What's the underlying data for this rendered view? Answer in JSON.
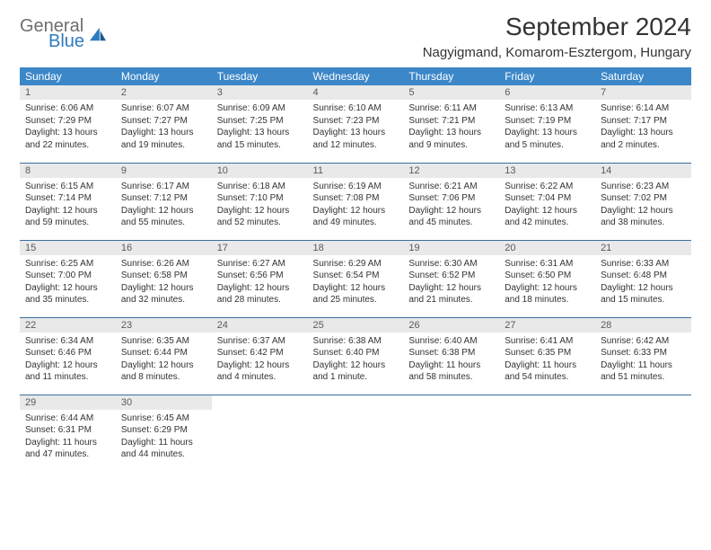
{
  "logo": {
    "word1": "General",
    "word2": "Blue"
  },
  "title": "September 2024",
  "location": "Nagyigmand, Komarom-Esztergom, Hungary",
  "colors": {
    "header_bg": "#3b87c8",
    "header_fg": "#ffffff",
    "daynum_bg": "#e9e9e9",
    "daynum_fg": "#5a5a5a",
    "row_border": "#3b6fa0",
    "logo_gray": "#6e6e6e",
    "logo_blue": "#2f7bbf",
    "body_text": "#333333"
  },
  "weekdays": [
    "Sunday",
    "Monday",
    "Tuesday",
    "Wednesday",
    "Thursday",
    "Friday",
    "Saturday"
  ],
  "weeks": [
    [
      {
        "n": "1",
        "sr": "6:06 AM",
        "ss": "7:29 PM",
        "dl": "13 hours and 22 minutes."
      },
      {
        "n": "2",
        "sr": "6:07 AM",
        "ss": "7:27 PM",
        "dl": "13 hours and 19 minutes."
      },
      {
        "n": "3",
        "sr": "6:09 AM",
        "ss": "7:25 PM",
        "dl": "13 hours and 15 minutes."
      },
      {
        "n": "4",
        "sr": "6:10 AM",
        "ss": "7:23 PM",
        "dl": "13 hours and 12 minutes."
      },
      {
        "n": "5",
        "sr": "6:11 AM",
        "ss": "7:21 PM",
        "dl": "13 hours and 9 minutes."
      },
      {
        "n": "6",
        "sr": "6:13 AM",
        "ss": "7:19 PM",
        "dl": "13 hours and 5 minutes."
      },
      {
        "n": "7",
        "sr": "6:14 AM",
        "ss": "7:17 PM",
        "dl": "13 hours and 2 minutes."
      }
    ],
    [
      {
        "n": "8",
        "sr": "6:15 AM",
        "ss": "7:14 PM",
        "dl": "12 hours and 59 minutes."
      },
      {
        "n": "9",
        "sr": "6:17 AM",
        "ss": "7:12 PM",
        "dl": "12 hours and 55 minutes."
      },
      {
        "n": "10",
        "sr": "6:18 AM",
        "ss": "7:10 PM",
        "dl": "12 hours and 52 minutes."
      },
      {
        "n": "11",
        "sr": "6:19 AM",
        "ss": "7:08 PM",
        "dl": "12 hours and 49 minutes."
      },
      {
        "n": "12",
        "sr": "6:21 AM",
        "ss": "7:06 PM",
        "dl": "12 hours and 45 minutes."
      },
      {
        "n": "13",
        "sr": "6:22 AM",
        "ss": "7:04 PM",
        "dl": "12 hours and 42 minutes."
      },
      {
        "n": "14",
        "sr": "6:23 AM",
        "ss": "7:02 PM",
        "dl": "12 hours and 38 minutes."
      }
    ],
    [
      {
        "n": "15",
        "sr": "6:25 AM",
        "ss": "7:00 PM",
        "dl": "12 hours and 35 minutes."
      },
      {
        "n": "16",
        "sr": "6:26 AM",
        "ss": "6:58 PM",
        "dl": "12 hours and 32 minutes."
      },
      {
        "n": "17",
        "sr": "6:27 AM",
        "ss": "6:56 PM",
        "dl": "12 hours and 28 minutes."
      },
      {
        "n": "18",
        "sr": "6:29 AM",
        "ss": "6:54 PM",
        "dl": "12 hours and 25 minutes."
      },
      {
        "n": "19",
        "sr": "6:30 AM",
        "ss": "6:52 PM",
        "dl": "12 hours and 21 minutes."
      },
      {
        "n": "20",
        "sr": "6:31 AM",
        "ss": "6:50 PM",
        "dl": "12 hours and 18 minutes."
      },
      {
        "n": "21",
        "sr": "6:33 AM",
        "ss": "6:48 PM",
        "dl": "12 hours and 15 minutes."
      }
    ],
    [
      {
        "n": "22",
        "sr": "6:34 AM",
        "ss": "6:46 PM",
        "dl": "12 hours and 11 minutes."
      },
      {
        "n": "23",
        "sr": "6:35 AM",
        "ss": "6:44 PM",
        "dl": "12 hours and 8 minutes."
      },
      {
        "n": "24",
        "sr": "6:37 AM",
        "ss": "6:42 PM",
        "dl": "12 hours and 4 minutes."
      },
      {
        "n": "25",
        "sr": "6:38 AM",
        "ss": "6:40 PM",
        "dl": "12 hours and 1 minute."
      },
      {
        "n": "26",
        "sr": "6:40 AM",
        "ss": "6:38 PM",
        "dl": "11 hours and 58 minutes."
      },
      {
        "n": "27",
        "sr": "6:41 AM",
        "ss": "6:35 PM",
        "dl": "11 hours and 54 minutes."
      },
      {
        "n": "28",
        "sr": "6:42 AM",
        "ss": "6:33 PM",
        "dl": "11 hours and 51 minutes."
      }
    ],
    [
      {
        "n": "29",
        "sr": "6:44 AM",
        "ss": "6:31 PM",
        "dl": "11 hours and 47 minutes."
      },
      {
        "n": "30",
        "sr": "6:45 AM",
        "ss": "6:29 PM",
        "dl": "11 hours and 44 minutes."
      },
      {
        "n": "",
        "sr": "",
        "ss": "",
        "dl": ""
      },
      {
        "n": "",
        "sr": "",
        "ss": "",
        "dl": ""
      },
      {
        "n": "",
        "sr": "",
        "ss": "",
        "dl": ""
      },
      {
        "n": "",
        "sr": "",
        "ss": "",
        "dl": ""
      },
      {
        "n": "",
        "sr": "",
        "ss": "",
        "dl": ""
      }
    ]
  ],
  "labels": {
    "sunrise": "Sunrise:",
    "sunset": "Sunset:",
    "daylight": "Daylight:"
  }
}
